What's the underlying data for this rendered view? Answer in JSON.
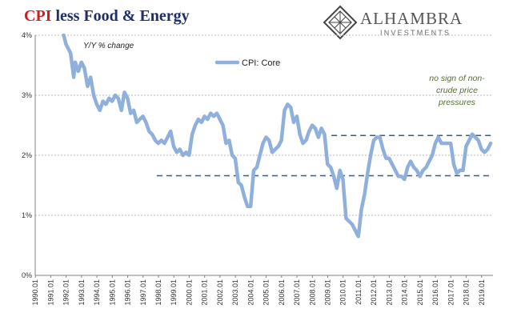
{
  "title": {
    "part1": "CPI",
    "part2": " less Food & Energy"
  },
  "logo": {
    "name": "ALHAMBRA",
    "sub": "INVESTMENTS"
  },
  "colors": {
    "title_red": "#cc1f1f",
    "title_navy": "#1f2f6b",
    "series": "#8fb0dc",
    "dashed": "#2f5d8c",
    "grid": "#b9b9b9",
    "annotation": "#556b2f"
  },
  "chart_data": {
    "type": "line",
    "unit_label": "Y/Y % change",
    "ylim": [
      0,
      4
    ],
    "yticks": [
      "0%",
      "1%",
      "2%",
      "3%",
      "4%"
    ],
    "xlim": [
      1990.0,
      2019.75
    ],
    "xticks": [
      "1990.01",
      "1991.01",
      "1992.01",
      "1993.01",
      "1994.01",
      "1995.01",
      "1996.01",
      "1997.01",
      "1998.01",
      "1999.01",
      "2000.01",
      "2001.01",
      "2002.01",
      "2003.01",
      "2004.01",
      "2005.01",
      "2006.01",
      "2007.01",
      "2008.01",
      "2009.01",
      "2010.01",
      "2011.01",
      "2012.01",
      "2013.01",
      "2014.01",
      "2015.01",
      "2016.01",
      "2017.01",
      "2018.01",
      "2019.01"
    ],
    "grid": true,
    "legend": "top-left",
    "series": [
      {
        "name": "CPI: Core",
        "x": [
          1991.85,
          1992.0,
          1992.3,
          1992.5,
          1992.6,
          1992.8,
          1993.0,
          1993.2,
          1993.4,
          1993.6,
          1993.8,
          1994.0,
          1994.2,
          1994.4,
          1994.6,
          1994.8,
          1995.0,
          1995.2,
          1995.4,
          1995.6,
          1995.8,
          1996.0,
          1996.2,
          1996.4,
          1996.6,
          1996.8,
          1997.0,
          1997.2,
          1997.4,
          1997.6,
          1997.8,
          1998.0,
          1998.2,
          1998.4,
          1998.6,
          1998.8,
          1999.0,
          1999.2,
          1999.4,
          1999.6,
          1999.8,
          2000.0,
          2000.2,
          2000.4,
          2000.6,
          2000.8,
          2001.0,
          2001.2,
          2001.4,
          2001.6,
          2001.8,
          2002.0,
          2002.2,
          2002.4,
          2002.6,
          2002.8,
          2003.0,
          2003.2,
          2003.4,
          2003.6,
          2003.8,
          2004.0,
          2004.2,
          2004.4,
          2004.6,
          2004.8,
          2005.0,
          2005.2,
          2005.4,
          2005.6,
          2005.8,
          2006.0,
          2006.2,
          2006.4,
          2006.6,
          2006.8,
          2007.0,
          2007.2,
          2007.4,
          2007.6,
          2007.8,
          2008.0,
          2008.2,
          2008.4,
          2008.6,
          2008.8,
          2009.0,
          2009.2,
          2009.4,
          2009.6,
          2009.8,
          2010.0,
          2010.2,
          2010.4,
          2010.6,
          2010.8,
          2011.0,
          2011.2,
          2011.4,
          2011.6,
          2011.8,
          2012.0,
          2012.2,
          2012.4,
          2012.6,
          2012.8,
          2013.0,
          2013.2,
          2013.4,
          2013.6,
          2013.8,
          2014.0,
          2014.2,
          2014.4,
          2014.6,
          2014.8,
          2015.0,
          2015.2,
          2015.4,
          2015.6,
          2015.8,
          2016.0,
          2016.2,
          2016.4,
          2016.6,
          2016.8,
          2017.0,
          2017.2,
          2017.4,
          2017.6,
          2017.8,
          2018.0,
          2018.2,
          2018.4,
          2018.6,
          2018.8,
          2019.0,
          2019.2,
          2019.4,
          2019.6
        ],
        "y": [
          4.0,
          3.85,
          3.7,
          3.3,
          3.55,
          3.4,
          3.55,
          3.45,
          3.15,
          3.3,
          3.0,
          2.85,
          2.75,
          2.9,
          2.85,
          2.95,
          2.9,
          3.0,
          2.95,
          2.75,
          3.05,
          2.95,
          2.7,
          2.75,
          2.55,
          2.6,
          2.65,
          2.55,
          2.4,
          2.35,
          2.25,
          2.2,
          2.25,
          2.2,
          2.3,
          2.4,
          2.15,
          2.05,
          2.1,
          2.0,
          2.05,
          2.0,
          2.35,
          2.5,
          2.6,
          2.55,
          2.65,
          2.6,
          2.7,
          2.65,
          2.7,
          2.6,
          2.5,
          2.2,
          2.25,
          2.0,
          1.95,
          1.55,
          1.5,
          1.3,
          1.15,
          1.15,
          1.75,
          1.8,
          2.0,
          2.2,
          2.3,
          2.25,
          2.05,
          2.1,
          2.15,
          2.25,
          2.75,
          2.85,
          2.8,
          2.55,
          2.65,
          2.35,
          2.2,
          2.25,
          2.4,
          2.5,
          2.45,
          2.3,
          2.45,
          2.35,
          1.85,
          1.8,
          1.65,
          1.45,
          1.75,
          1.6,
          0.95,
          0.9,
          0.85,
          0.75,
          0.65,
          1.1,
          1.35,
          1.7,
          2.0,
          2.25,
          2.3,
          2.3,
          2.1,
          1.95,
          1.95,
          1.85,
          1.75,
          1.65,
          1.65,
          1.6,
          1.8,
          1.9,
          1.8,
          1.75,
          1.65,
          1.75,
          1.8,
          1.9,
          2.0,
          2.2,
          2.3,
          2.2,
          2.2,
          2.2,
          2.2,
          1.85,
          1.7,
          1.75,
          1.75,
          2.15,
          2.25,
          2.35,
          2.3,
          2.25,
          2.1,
          2.05,
          2.1,
          2.2
        ]
      }
    ],
    "reference_lines": [
      {
        "y": 2.33,
        "x_from": 2009.25,
        "x_to": 2019.75
      },
      {
        "y": 1.66,
        "x_from": 1997.9,
        "x_to": 2019.75
      }
    ],
    "annotation": [
      "no sign of non-",
      "crude price",
      "pressures"
    ]
  }
}
